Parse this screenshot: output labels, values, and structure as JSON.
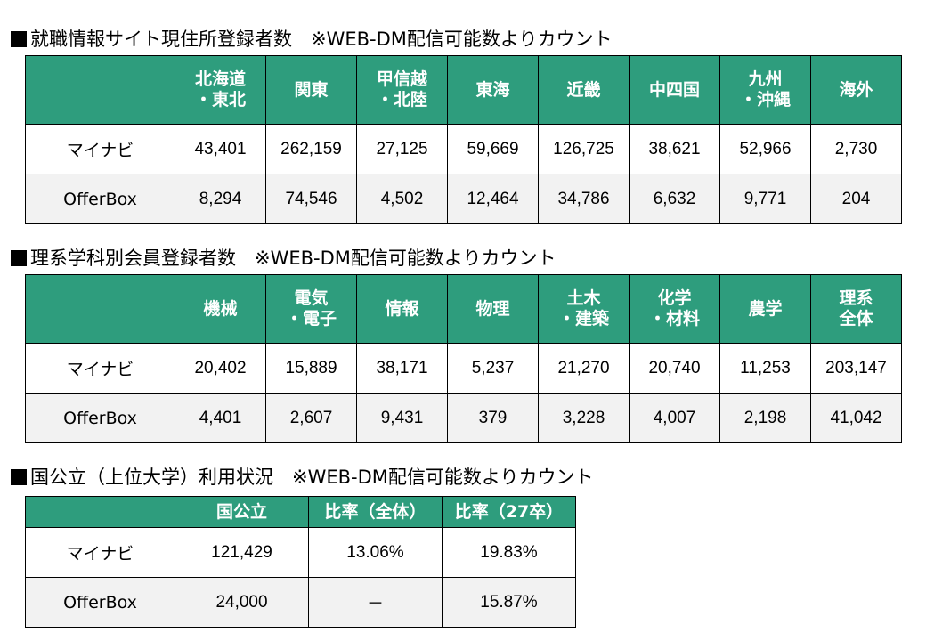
{
  "section1": {
    "title": "就職情報サイト現住所登録者数　※WEB-DM配信可能数よりカウント",
    "headers": [
      [
        "北海道",
        "・東北"
      ],
      [
        "関東"
      ],
      [
        "甲信越",
        "・北陸"
      ],
      [
        "東海"
      ],
      [
        "近畿"
      ],
      [
        "中四国"
      ],
      [
        "九州",
        "・沖縄"
      ],
      [
        "海外"
      ]
    ],
    "rows": [
      {
        "label": "マイナビ",
        "values": [
          "43,401",
          "262,159",
          "27,125",
          "59,669",
          "126,725",
          "38,621",
          "52,966",
          "2,730"
        ]
      },
      {
        "label": "OfferBox",
        "values": [
          "8,294",
          "74,546",
          "4,502",
          "12,464",
          "34,786",
          "6,632",
          "9,771",
          "204"
        ]
      }
    ]
  },
  "section2": {
    "title": "理系学科別会員登録者数　※WEB-DM配信可能数よりカウント",
    "headers": [
      [
        "機械"
      ],
      [
        "電気",
        "・電子"
      ],
      [
        "情報"
      ],
      [
        "物理"
      ],
      [
        "土木",
        "・建築"
      ],
      [
        "化学",
        "・材料"
      ],
      [
        "農学"
      ],
      [
        "理系",
        "全体"
      ]
    ],
    "rows": [
      {
        "label": "マイナビ",
        "values": [
          "20,402",
          "15,889",
          "38,171",
          "5,237",
          "21,270",
          "20,740",
          "11,253",
          "203,147"
        ]
      },
      {
        "label": "OfferBox",
        "values": [
          "4,401",
          "2,607",
          "9,431",
          "379",
          "3,228",
          "4,007",
          "2,198",
          "41,042"
        ]
      }
    ]
  },
  "section3": {
    "title": "国公立（上位大学）利用状況　※WEB-DM配信可能数よりカウント",
    "headers": [
      [
        "国公立"
      ],
      [
        "比率（全体）"
      ],
      [
        "比率（27卒）"
      ]
    ],
    "rows": [
      {
        "label": "マイナビ",
        "values": [
          "121,429",
          "13.06%",
          "19.83%"
        ]
      },
      {
        "label": "OfferBox",
        "values": [
          "24,000",
          "－",
          "15.87%"
        ]
      }
    ]
  }
}
